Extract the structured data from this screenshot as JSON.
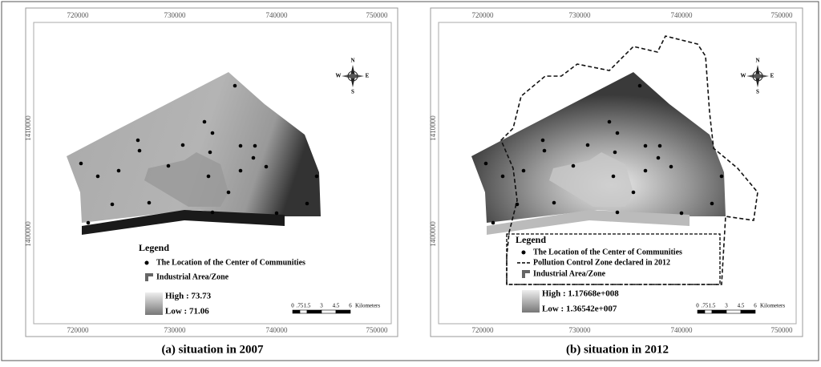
{
  "panels": [
    {
      "caption": "(a) situation in 2007",
      "x_labels": [
        "720000",
        "730000",
        "740000",
        "750000"
      ],
      "y_labels": [
        "1410000",
        "1400000"
      ],
      "compass": {
        "n": "N",
        "s": "S",
        "e": "E",
        "w": "W"
      },
      "legend": {
        "title": "Legend",
        "communities": "The Location of the Center of Communities",
        "industrial": "Industrial Area/Zone",
        "high": "High : 73.73",
        "low": "Low : 71.06"
      },
      "scale": {
        "labels": [
          "0",
          ".75",
          "1.5",
          "3",
          "4.5",
          "6"
        ],
        "unit": "Kilometers"
      }
    },
    {
      "caption": "(b) situation in 2012",
      "x_labels": [
        "720000",
        "730000",
        "740000",
        "750000"
      ],
      "y_labels": [
        "1410000",
        "1400000"
      ],
      "compass": {
        "n": "N",
        "s": "S",
        "e": "E",
        "w": "W"
      },
      "legend": {
        "title": "Legend",
        "communities": "The Location of the Center of Communities",
        "pollution_zone": "Pollution Control Zone declared in 2012",
        "industrial": "Industrial Area/Zone",
        "high": "High : 1.17668e+008",
        "low": "Low : 1.36542e+007"
      },
      "scale": {
        "labels": [
          "0",
          ".75",
          "1.5",
          "3",
          "4.5",
          "6"
        ],
        "unit": "Kilometers"
      }
    }
  ]
}
